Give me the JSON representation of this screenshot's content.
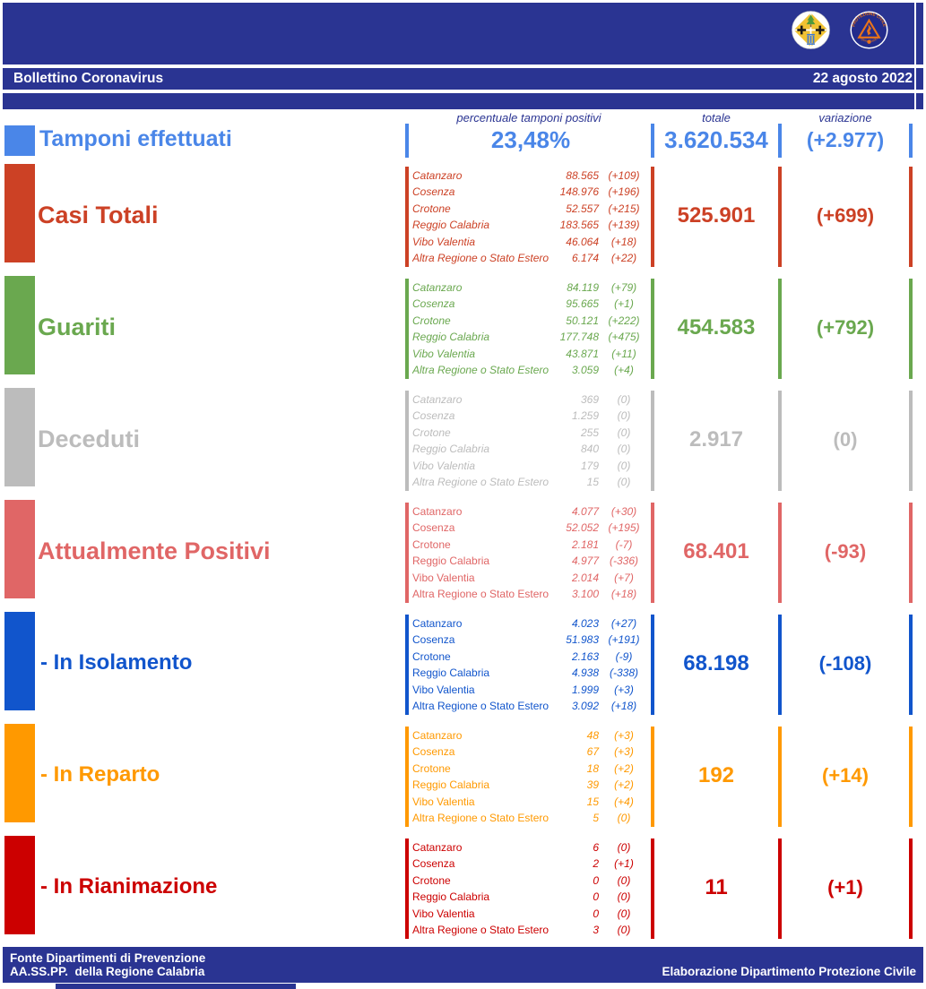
{
  "theme": {
    "navy": "#2A3492",
    "white": "#FFFFFF"
  },
  "header": {
    "title": "Bollettino Coronavirus",
    "date": "22 agosto 2022"
  },
  "logos": {
    "calabria": "regione-calabria-emblem",
    "protezione_civile": "protezione-civile-regione-calabria-badge",
    "pc_top": "PROTEZIONE CIVILE",
    "pc_bottom": "Regione Calabria"
  },
  "column_headers": {
    "percentuale": "percentuale tamponi positivi",
    "totale": "totale",
    "variazione": "variazione"
  },
  "provinces": [
    "Catanzaro",
    "Cosenza",
    "Crotone",
    "Reggio Calabria",
    "Vibo Valentia",
    "Altra Regione o Stato Estero"
  ],
  "tamponi": {
    "label": "Tamponi effettuati",
    "color": "#4A86E8",
    "percentuale": "23,48%",
    "totale": "3.620.534",
    "variazione": "(+2.977)"
  },
  "rows": [
    {
      "id": "casi-totali",
      "label": "Casi Totali",
      "color": "#CC4125",
      "italic_names": true,
      "indent": false,
      "totale": "525.901",
      "variazione": "(+699)",
      "breakdown": [
        {
          "value": "88.565",
          "variation": "(+109)"
        },
        {
          "value": "148.976",
          "variation": "(+196)"
        },
        {
          "value": "52.557",
          "variation": "(+215)"
        },
        {
          "value": "183.565",
          "variation": "(+139)"
        },
        {
          "value": "46.064",
          "variation": "(+18)"
        },
        {
          "value": "6.174",
          "variation": "(+22)"
        }
      ]
    },
    {
      "id": "guariti",
      "label": "Guariti",
      "color": "#6AA84F",
      "italic_names": true,
      "indent": false,
      "totale": "454.583",
      "variazione": "(+792)",
      "breakdown": [
        {
          "value": "84.119",
          "variation": "(+79)"
        },
        {
          "value": "95.665",
          "variation": "(+1)"
        },
        {
          "value": "50.121",
          "variation": "(+222)"
        },
        {
          "value": "177.748",
          "variation": "(+475)"
        },
        {
          "value": "43.871",
          "variation": "(+11)"
        },
        {
          "value": "3.059",
          "variation": "(+4)"
        }
      ]
    },
    {
      "id": "deceduti",
      "label": "Deceduti",
      "color": "#BCBCBC",
      "italic_names": true,
      "indent": false,
      "totale": "2.917",
      "variazione": "(0)",
      "breakdown": [
        {
          "value": "369",
          "variation": "(0)"
        },
        {
          "value": "1.259",
          "variation": "(0)"
        },
        {
          "value": "255",
          "variation": "(0)"
        },
        {
          "value": "840",
          "variation": "(0)"
        },
        {
          "value": "179",
          "variation": "(0)"
        },
        {
          "value": "15",
          "variation": "(0)"
        }
      ]
    },
    {
      "id": "attualmente-positivi",
      "label": "Attualmente Positivi",
      "color": "#E06666",
      "italic_names": false,
      "indent": false,
      "totale": "68.401",
      "variazione": "(-93)",
      "breakdown": [
        {
          "value": "4.077",
          "variation": "(+30)"
        },
        {
          "value": "52.052",
          "variation": "(+195)"
        },
        {
          "value": "2.181",
          "variation": "(-7)"
        },
        {
          "value": "4.977",
          "variation": "(-336)"
        },
        {
          "value": "2.014",
          "variation": "(+7)"
        },
        {
          "value": "3.100",
          "variation": "(+18)"
        }
      ]
    },
    {
      "id": "in-isolamento",
      "label": "- In Isolamento",
      "color": "#1155CC",
      "italic_names": false,
      "indent": true,
      "totale": "68.198",
      "variazione": "(-108)",
      "breakdown": [
        {
          "value": "4.023",
          "variation": "(+27)"
        },
        {
          "value": "51.983",
          "variation": "(+191)"
        },
        {
          "value": "2.163",
          "variation": "(-9)"
        },
        {
          "value": "4.938",
          "variation": "(-338)"
        },
        {
          "value": "1.999",
          "variation": "(+3)"
        },
        {
          "value": "3.092",
          "variation": "(+18)"
        }
      ]
    },
    {
      "id": "in-reparto",
      "label": "- In Reparto",
      "color": "#FF9900",
      "italic_names": false,
      "indent": true,
      "totale": "192",
      "variazione": "(+14)",
      "breakdown": [
        {
          "value": "48",
          "variation": "(+3)"
        },
        {
          "value": "67",
          "variation": "(+3)"
        },
        {
          "value": "18",
          "variation": "(+2)"
        },
        {
          "value": "39",
          "variation": "(+2)"
        },
        {
          "value": "15",
          "variation": "(+4)"
        },
        {
          "value": "5",
          "variation": "(0)"
        }
      ]
    },
    {
      "id": "in-rianimazione",
      "label": "- In Rianimazione",
      "color": "#CC0000",
      "italic_names": false,
      "indent": true,
      "totale": "11",
      "variazione": "(+1)",
      "breakdown": [
        {
          "value": "6",
          "variation": "(0)"
        },
        {
          "value": "2",
          "variation": "(+1)"
        },
        {
          "value": "0",
          "variation": "(0)"
        },
        {
          "value": "0",
          "variation": "(0)"
        },
        {
          "value": "0",
          "variation": "(0)"
        },
        {
          "value": "3",
          "variation": "(0)"
        }
      ]
    }
  ],
  "footer": {
    "line1": "Fonte Dipartimenti di Prevenzione",
    "line2": "AA.SS.PP.  della Regione Calabria",
    "right": "Elaborazione Dipartimento Protezione Civile"
  }
}
